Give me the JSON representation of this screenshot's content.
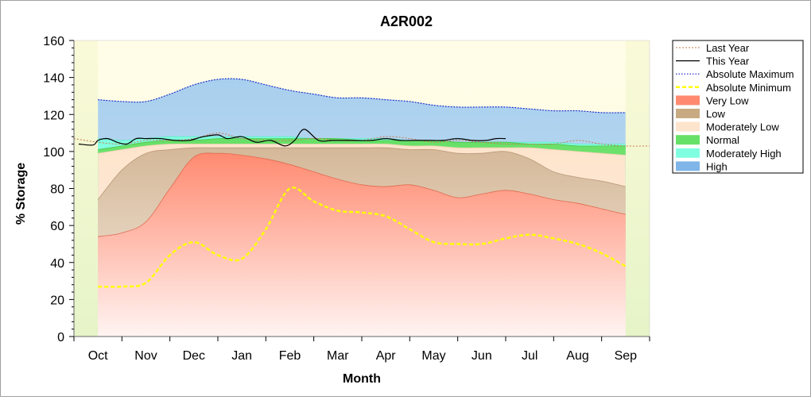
{
  "chart_data": {
    "type": "area",
    "title": "A2R002",
    "xlabel": "Month",
    "ylabel": "% Storage",
    "ylim": [
      0,
      160
    ],
    "yticks": [
      0,
      20,
      40,
      60,
      80,
      100,
      120,
      140,
      160
    ],
    "xlim": [
      -0.5,
      11.5
    ],
    "categories": [
      "Oct",
      "Nov",
      "Dec",
      "Jan",
      "Feb",
      "Mar",
      "Apr",
      "May",
      "Jun",
      "Jul",
      "Aug",
      "Sep"
    ],
    "x": [
      0,
      0.5,
      1,
      1.5,
      2,
      2.5,
      3,
      3.5,
      4,
      4.5,
      5,
      5.5,
      6,
      6.5,
      7,
      7.5,
      8,
      8.5,
      9,
      9.5,
      10,
      10.5,
      11
    ],
    "grid": false,
    "legend_position": "right",
    "bands": [
      {
        "name": "Very Low",
        "color": "#ff8066",
        "upper": [
          54,
          56,
          62,
          80,
          97,
          99,
          98,
          96,
          93,
          89,
          85,
          82,
          81,
          82,
          79,
          75,
          77,
          79,
          77,
          74,
          72,
          69,
          66
        ]
      },
      {
        "name": "Low",
        "color": "#c8aa82",
        "upper": [
          74,
          90,
          99,
          101,
          102,
          102,
          102,
          102,
          102,
          102,
          102,
          102,
          102,
          101,
          101,
          99,
          99,
          100,
          96,
          89,
          86,
          84,
          81
        ]
      },
      {
        "name": "Moderately Low",
        "color": "#fde4cc",
        "upper": [
          99,
          101,
          103,
          104,
          104,
          104,
          104,
          104,
          104,
          104,
          104,
          104,
          104,
          103,
          103,
          102,
          102,
          102,
          102,
          101,
          100,
          99,
          98
        ]
      },
      {
        "name": "Normal",
        "color": "#66e066",
        "upper": [
          101,
          103,
          105,
          106,
          106,
          107,
          107,
          107,
          107,
          107,
          107,
          106,
          106,
          106,
          106,
          105,
          105,
          105,
          104,
          104,
          103,
          103,
          103
        ]
      },
      {
        "name": "Moderately High",
        "color": "#80ffe0",
        "upper": [
          107,
          106,
          107,
          108,
          108,
          108,
          108,
          108,
          108,
          107,
          107,
          107,
          107,
          106,
          106,
          105,
          105,
          105,
          105,
          105,
          104,
          104,
          104
        ]
      },
      {
        "name": "High",
        "color": "#7fb5e8",
        "upper": [
          128,
          127,
          127,
          131,
          136,
          139,
          139,
          136,
          133,
          131,
          129,
          129,
          128,
          127,
          125,
          124,
          124,
          124,
          123,
          122,
          122,
          121,
          121
        ]
      }
    ],
    "series": [
      {
        "name": "Last Year",
        "color": "#c87850",
        "style": "dotted",
        "x": [
          -0.5,
          0,
          0.5,
          1,
          1.5,
          2,
          2.5,
          3,
          3.5,
          4,
          4.5,
          5,
          5.5,
          6,
          6.5,
          7,
          7.5,
          8,
          8.5,
          9,
          9.5,
          10,
          10.5,
          11,
          11.5
        ],
        "values": [
          107,
          105,
          104,
          106,
          106,
          107,
          110,
          107,
          106,
          106,
          107,
          106,
          106,
          108,
          107,
          105,
          106,
          105,
          104,
          104,
          104,
          106,
          104,
          103,
          103
        ]
      },
      {
        "name": "This Year",
        "color": "#000000",
        "style": "solid",
        "x": [
          -0.4,
          -0.1,
          0,
          0.2,
          0.4,
          0.6,
          0.8,
          1,
          1.3,
          1.6,
          1.9,
          2.2,
          2.5,
          2.7,
          3.0,
          3.3,
          3.6,
          3.9,
          4.1,
          4.3,
          4.6,
          4.9,
          5.3,
          5.7,
          6.0,
          6.3,
          6.6,
          6.9,
          7.2,
          7.5,
          7.8,
          8.1,
          8.3,
          8.5
        ],
        "values": [
          104,
          103.5,
          106,
          107,
          105,
          104,
          107,
          107,
          107,
          106,
          106,
          108,
          109,
          107,
          108,
          105,
          106,
          103,
          106,
          112,
          106,
          106,
          106,
          106,
          107,
          106,
          106,
          106,
          106,
          107,
          106,
          106,
          107,
          107
        ]
      },
      {
        "name": "Absolute Maximum",
        "color": "#1a1acc",
        "style": "dotted",
        "values": [
          128,
          127,
          127,
          131,
          136,
          139,
          139,
          136,
          133,
          131,
          129,
          129,
          128,
          127,
          125,
          124,
          124,
          124,
          123,
          122,
          122,
          121,
          121
        ]
      },
      {
        "name": "Absolute Minimum",
        "color": "#ffff00",
        "style": "dashed",
        "values": [
          27,
          27,
          29,
          44,
          51,
          44,
          42,
          58,
          80,
          73,
          68,
          67,
          65,
          58,
          51,
          50,
          50,
          53,
          55,
          53,
          50,
          45,
          38
        ]
      }
    ],
    "legend": [
      "Last Year",
      "This Year",
      "Absolute Maximum",
      "Absolute Minimum",
      "Very Low",
      "Low",
      "Moderately Low",
      "Normal",
      "Moderately High",
      "High"
    ]
  }
}
